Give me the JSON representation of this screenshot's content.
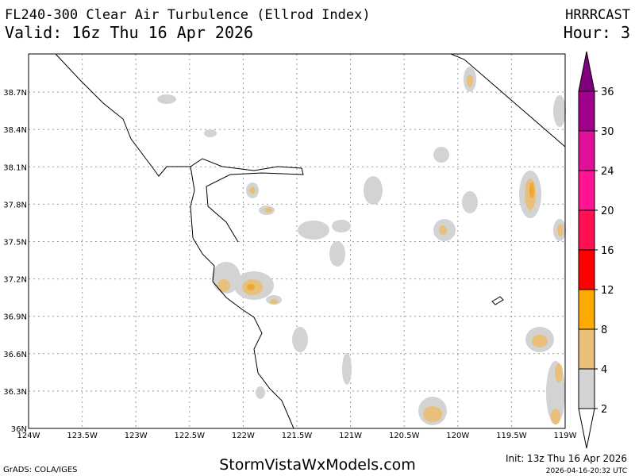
{
  "header": {
    "title": "FL240-300 Clear Air Turbulence (Ellrod Index)",
    "valid": "Valid: 16z Thu 16 Apr 2026",
    "model": "HRRRCAST",
    "hour": "Hour: 3"
  },
  "map": {
    "lat_labels": [
      "38.7N",
      "38.4N",
      "38.1N",
      "37.8N",
      "37.5N",
      "37.2N",
      "36.9N",
      "36.6N",
      "36.3N",
      "36N"
    ],
    "lon_labels": [
      "124W",
      "123.5W",
      "123W",
      "122.5W",
      "122W",
      "121.5W",
      "121W",
      "120.5W",
      "120W",
      "119.5W",
      "119W"
    ]
  },
  "colorbar": {
    "levels": [
      2,
      4,
      8,
      12,
      16,
      20,
      24,
      30,
      36
    ],
    "colors": [
      "#ffffff",
      "#d3d3d3",
      "#e8c07a",
      "#ffaa00",
      "#ff0000",
      "#ff1050",
      "#ff1493",
      "#e0109a",
      "#a0008c",
      "#800080"
    ]
  },
  "footer": {
    "credit": "GrADS: COLA/IGES",
    "site": "StormVistaWxModels.com",
    "init": "Init: 13z Thu 16 Apr 2026",
    "timestamp": "2026-04-16-20:32 UTC"
  }
}
